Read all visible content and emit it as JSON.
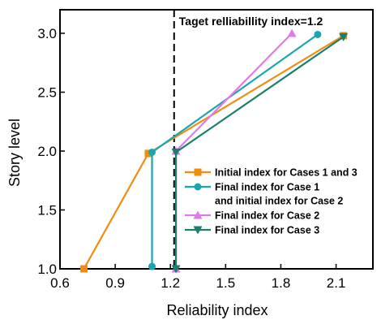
{
  "chart_data": {
    "type": "line",
    "title": "",
    "xlabel": "Reliability index",
    "ylabel": "Story level",
    "xlim": [
      0.6,
      2.3
    ],
    "ylim": [
      1.0,
      3.2
    ],
    "xticks": [
      0.6,
      0.9,
      1.2,
      1.5,
      1.8,
      2.1
    ],
    "xtick_labels": [
      "0.6",
      "0.9",
      "1.2",
      "1.5",
      "1.8",
      "2.1"
    ],
    "yticks": [
      1.0,
      1.5,
      2.0,
      2.5,
      3.0
    ],
    "ytick_labels": [
      "1.0",
      "1.5",
      "2.0",
      "2.5",
      "3.0"
    ],
    "grid": false,
    "legend_position": "lower-right",
    "annotation": {
      "text": "Taget relliabillity index=1.2",
      "x_value": 1.22,
      "style": "dashed vertical line"
    },
    "series": [
      {
        "name": "Initial index for Cases 1 and 3",
        "legend_lines": [
          "Initial index for Cases 1 and 3"
        ],
        "color": "#f28c10",
        "marker": "square",
        "x": [
          0.73,
          1.08,
          2.14
        ],
        "y": [
          1.0,
          1.98,
          2.98
        ]
      },
      {
        "name": "Final index for Case 1 and initial index for Case 2",
        "legend_lines": [
          "Final index for Case 1",
          "and initial index for Case 2"
        ],
        "color": "#1aa6ae",
        "marker": "circle",
        "x": [
          1.1,
          1.1,
          2.0
        ],
        "y": [
          1.02,
          1.99,
          2.99
        ]
      },
      {
        "name": "Final index for Case 2",
        "legend_lines": [
          "Final index for Case 2"
        ],
        "color": "#e07ae8",
        "marker": "triangle-up",
        "x": [
          1.23,
          1.23,
          1.86
        ],
        "y": [
          1.0,
          2.0,
          3.0
        ]
      },
      {
        "name": "Final index for Case 3",
        "legend_lines": [
          "Final index for Case 3"
        ],
        "color": "#1c7f6e",
        "marker": "triangle-down",
        "x": [
          1.23,
          1.23,
          2.14
        ],
        "y": [
          1.0,
          1.99,
          2.97
        ]
      }
    ]
  }
}
